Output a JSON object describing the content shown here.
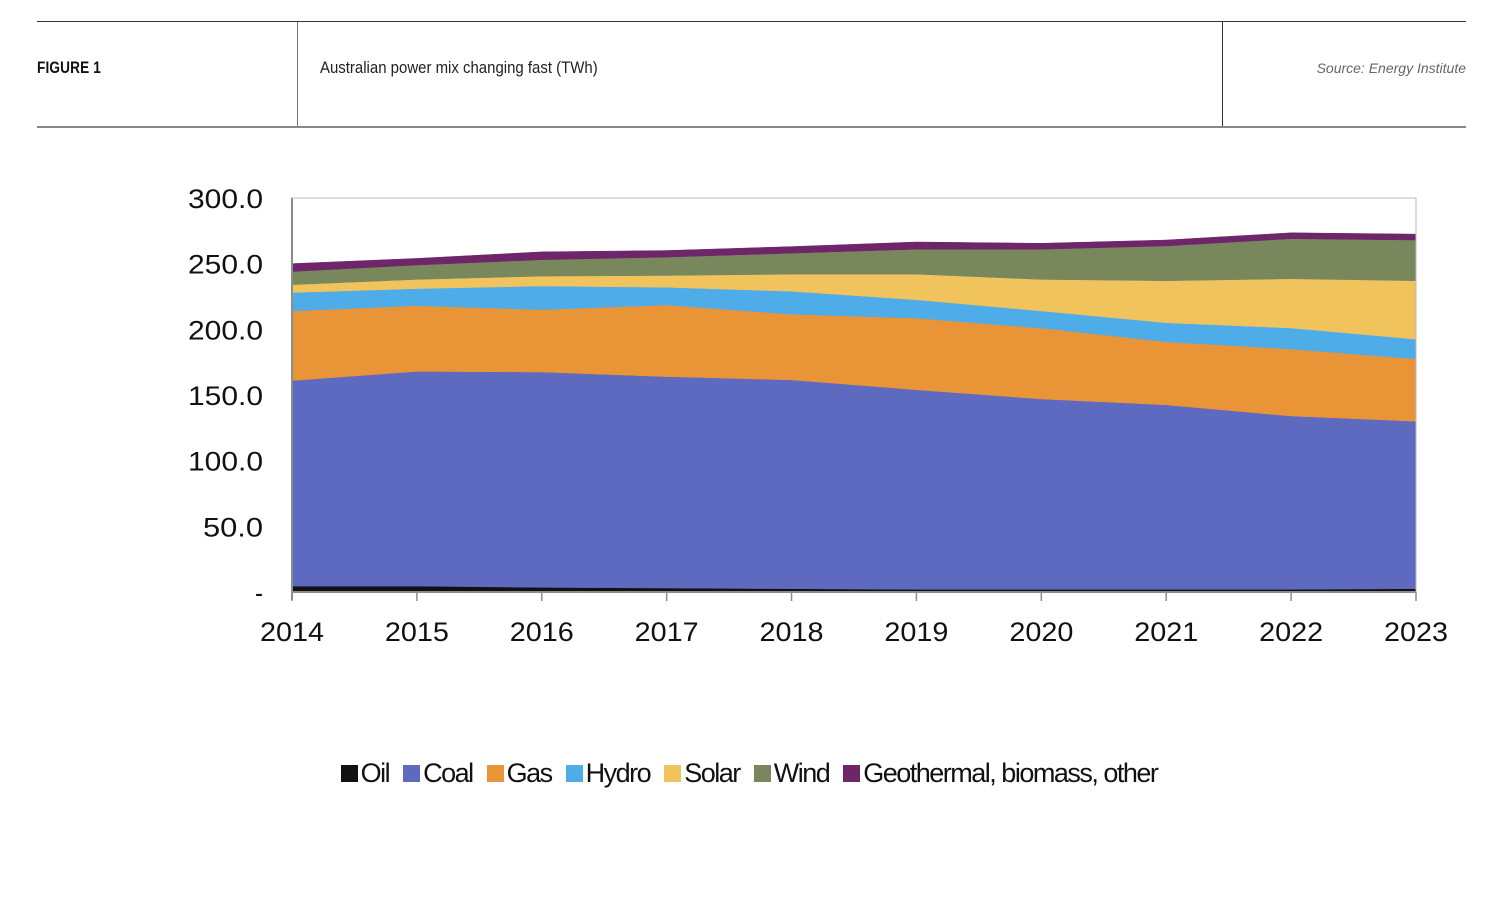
{
  "header": {
    "figure_label": "FIGURE 1",
    "title": "Australian power mix changing fast (TWh)",
    "source": "Source: Energy Institute"
  },
  "chart_data": {
    "type": "area",
    "stacked": true,
    "title": "Australian power mix changing fast (TWh)",
    "xlabel": "",
    "ylabel": "",
    "units": "TWh",
    "x": [
      "2014",
      "2015",
      "2016",
      "2017",
      "2018",
      "2019",
      "2020",
      "2021",
      "2022",
      "2023"
    ],
    "ylim": [
      0,
      300
    ],
    "yticks": [
      0,
      50,
      100,
      150,
      200,
      250,
      300
    ],
    "ytick_labels": [
      "-",
      "50.0",
      "100.0",
      "150.0",
      "200.0",
      "250.0",
      "300.0"
    ],
    "grid": false,
    "legend_position": "bottom",
    "series": [
      {
        "name": "Oil",
        "color": "#111111",
        "values": [
          4.5,
          4.5,
          3.5,
          3.0,
          2.5,
          2.0,
          2.0,
          2.0,
          2.0,
          2.5
        ]
      },
      {
        "name": "Coal",
        "color": "#5e6abf",
        "values": [
          156.5,
          163.5,
          164.0,
          161.0,
          159.0,
          152.0,
          145.0,
          140.5,
          132.0,
          127.5
        ]
      },
      {
        "name": "Gas",
        "color": "#e99437",
        "values": [
          53.0,
          50.0,
          47.5,
          54.5,
          50.0,
          54.5,
          54.0,
          48.0,
          51.0,
          47.5
        ]
      },
      {
        "name": "Hydro",
        "color": "#4eace8",
        "values": [
          14.0,
          13.0,
          18.0,
          13.5,
          17.5,
          14.0,
          13.0,
          14.5,
          16.0,
          15.0
        ]
      },
      {
        "name": "Solar",
        "color": "#f0c35d",
        "values": [
          6.0,
          7.0,
          7.5,
          9.0,
          13.0,
          19.5,
          24.0,
          32.0,
          37.5,
          44.5
        ]
      },
      {
        "name": "Wind",
        "color": "#79875c",
        "values": [
          10.0,
          11.0,
          12.5,
          14.0,
          16.0,
          19.0,
          23.0,
          26.5,
          30.5,
          31.0
        ]
      },
      {
        "name": "Geothermal, biomass, other",
        "color": "#6e2569",
        "values": [
          6.0,
          5.0,
          6.0,
          5.0,
          5.0,
          5.5,
          4.5,
          4.5,
          4.5,
          4.5
        ]
      }
    ]
  }
}
